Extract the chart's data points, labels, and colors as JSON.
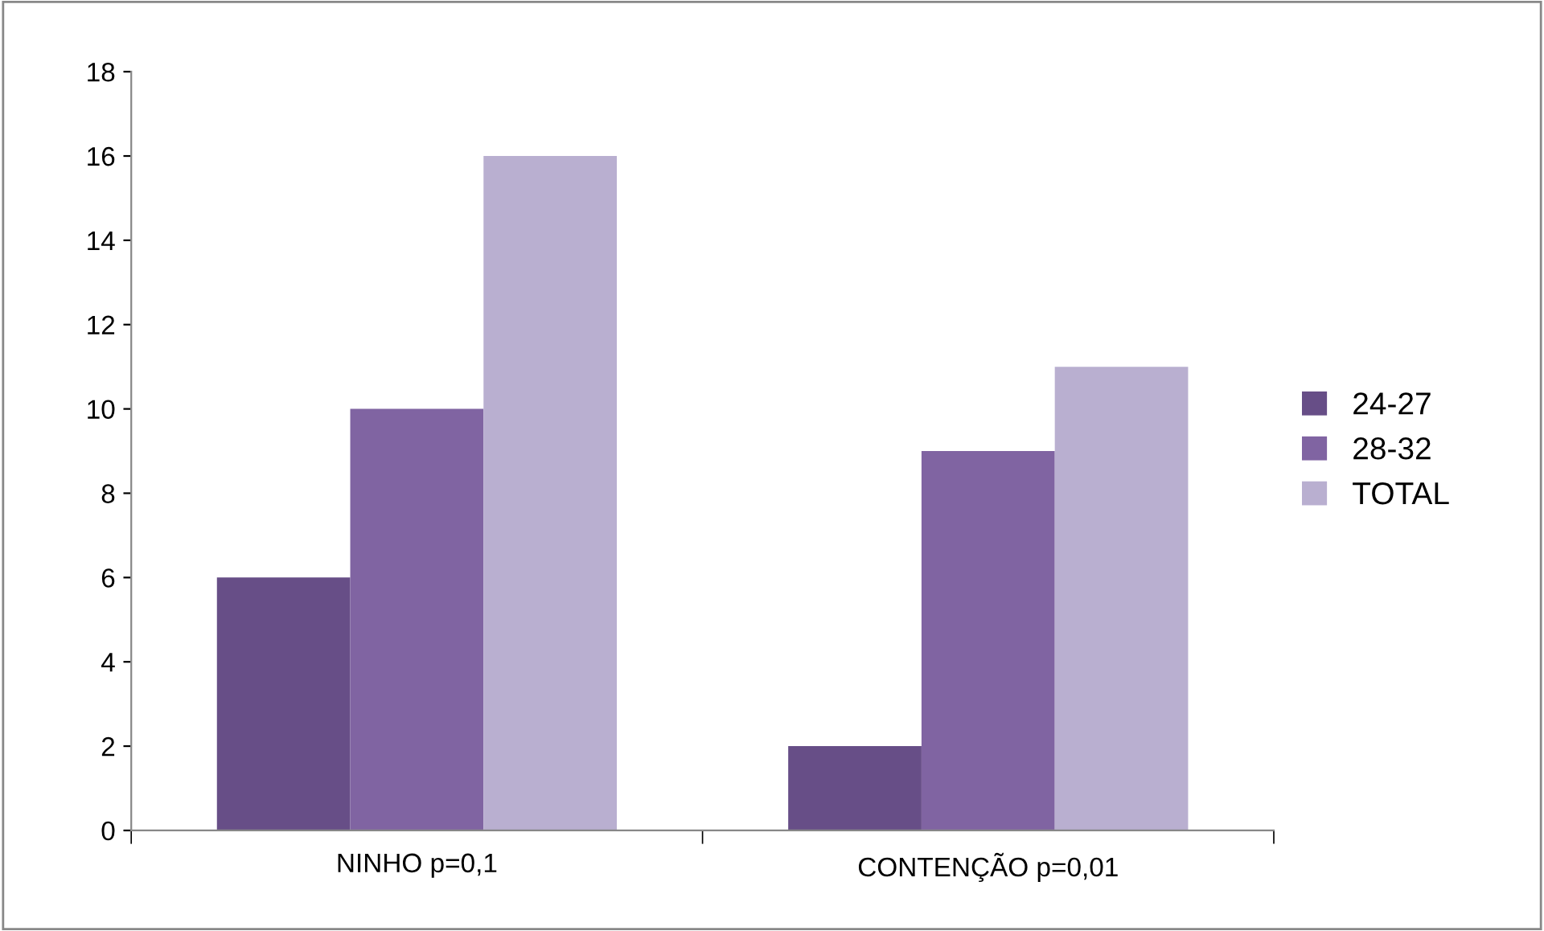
{
  "chart_data": {
    "type": "bar",
    "categories": [
      "NINHO p=0,1",
      "CONTENÇÃO p=0,01"
    ],
    "series": [
      {
        "name": "24-27",
        "color": "#674e87",
        "values": [
          6,
          2
        ]
      },
      {
        "name": "28-32",
        "color": "#8064a2",
        "values": [
          10,
          9
        ]
      },
      {
        "name": "TOTAL",
        "color": "#b9afd0",
        "values": [
          16,
          11
        ]
      }
    ],
    "ylim": [
      0,
      18
    ],
    "yticks": [
      0,
      2,
      4,
      6,
      8,
      10,
      12,
      14,
      16,
      18
    ],
    "grid": false,
    "legend": "right"
  }
}
